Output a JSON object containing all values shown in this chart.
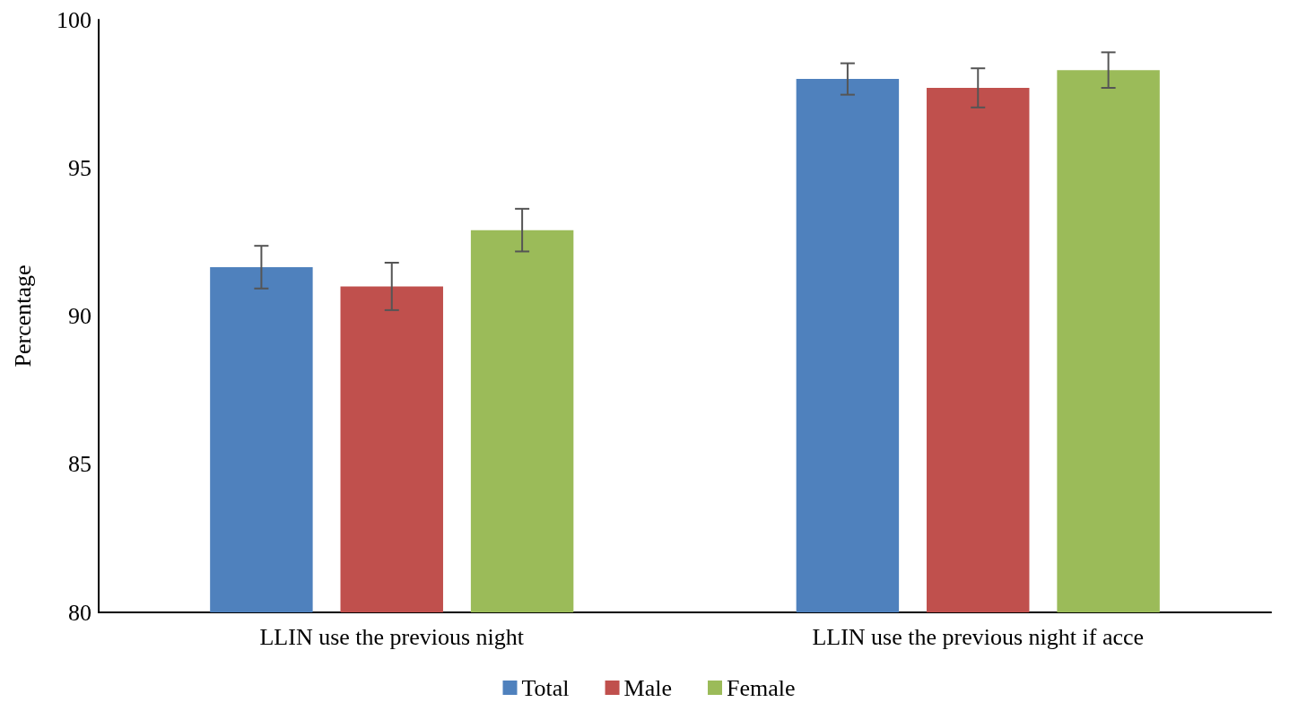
{
  "chart_data": {
    "type": "bar",
    "ylabel": "Percentage",
    "categories": [
      "LLIN use the previous night",
      "LLIN use the previous night if acce"
    ],
    "series": [
      {
        "name": "Total",
        "color": "#4f81bd",
        "values": [
          91.65,
          98.0
        ],
        "errors": [
          0.72,
          0.53
        ]
      },
      {
        "name": "Male",
        "color": "#c0504d",
        "values": [
          91.0,
          97.7
        ],
        "errors": [
          0.8,
          0.66
        ]
      },
      {
        "name": "Female",
        "color": "#9bbb59",
        "values": [
          92.9,
          98.3
        ],
        "errors": [
          0.72,
          0.6
        ]
      }
    ],
    "ylim": [
      80,
      100
    ],
    "yticks": [
      80,
      85,
      90,
      95,
      100
    ],
    "grid": false,
    "legend": "bottom"
  }
}
